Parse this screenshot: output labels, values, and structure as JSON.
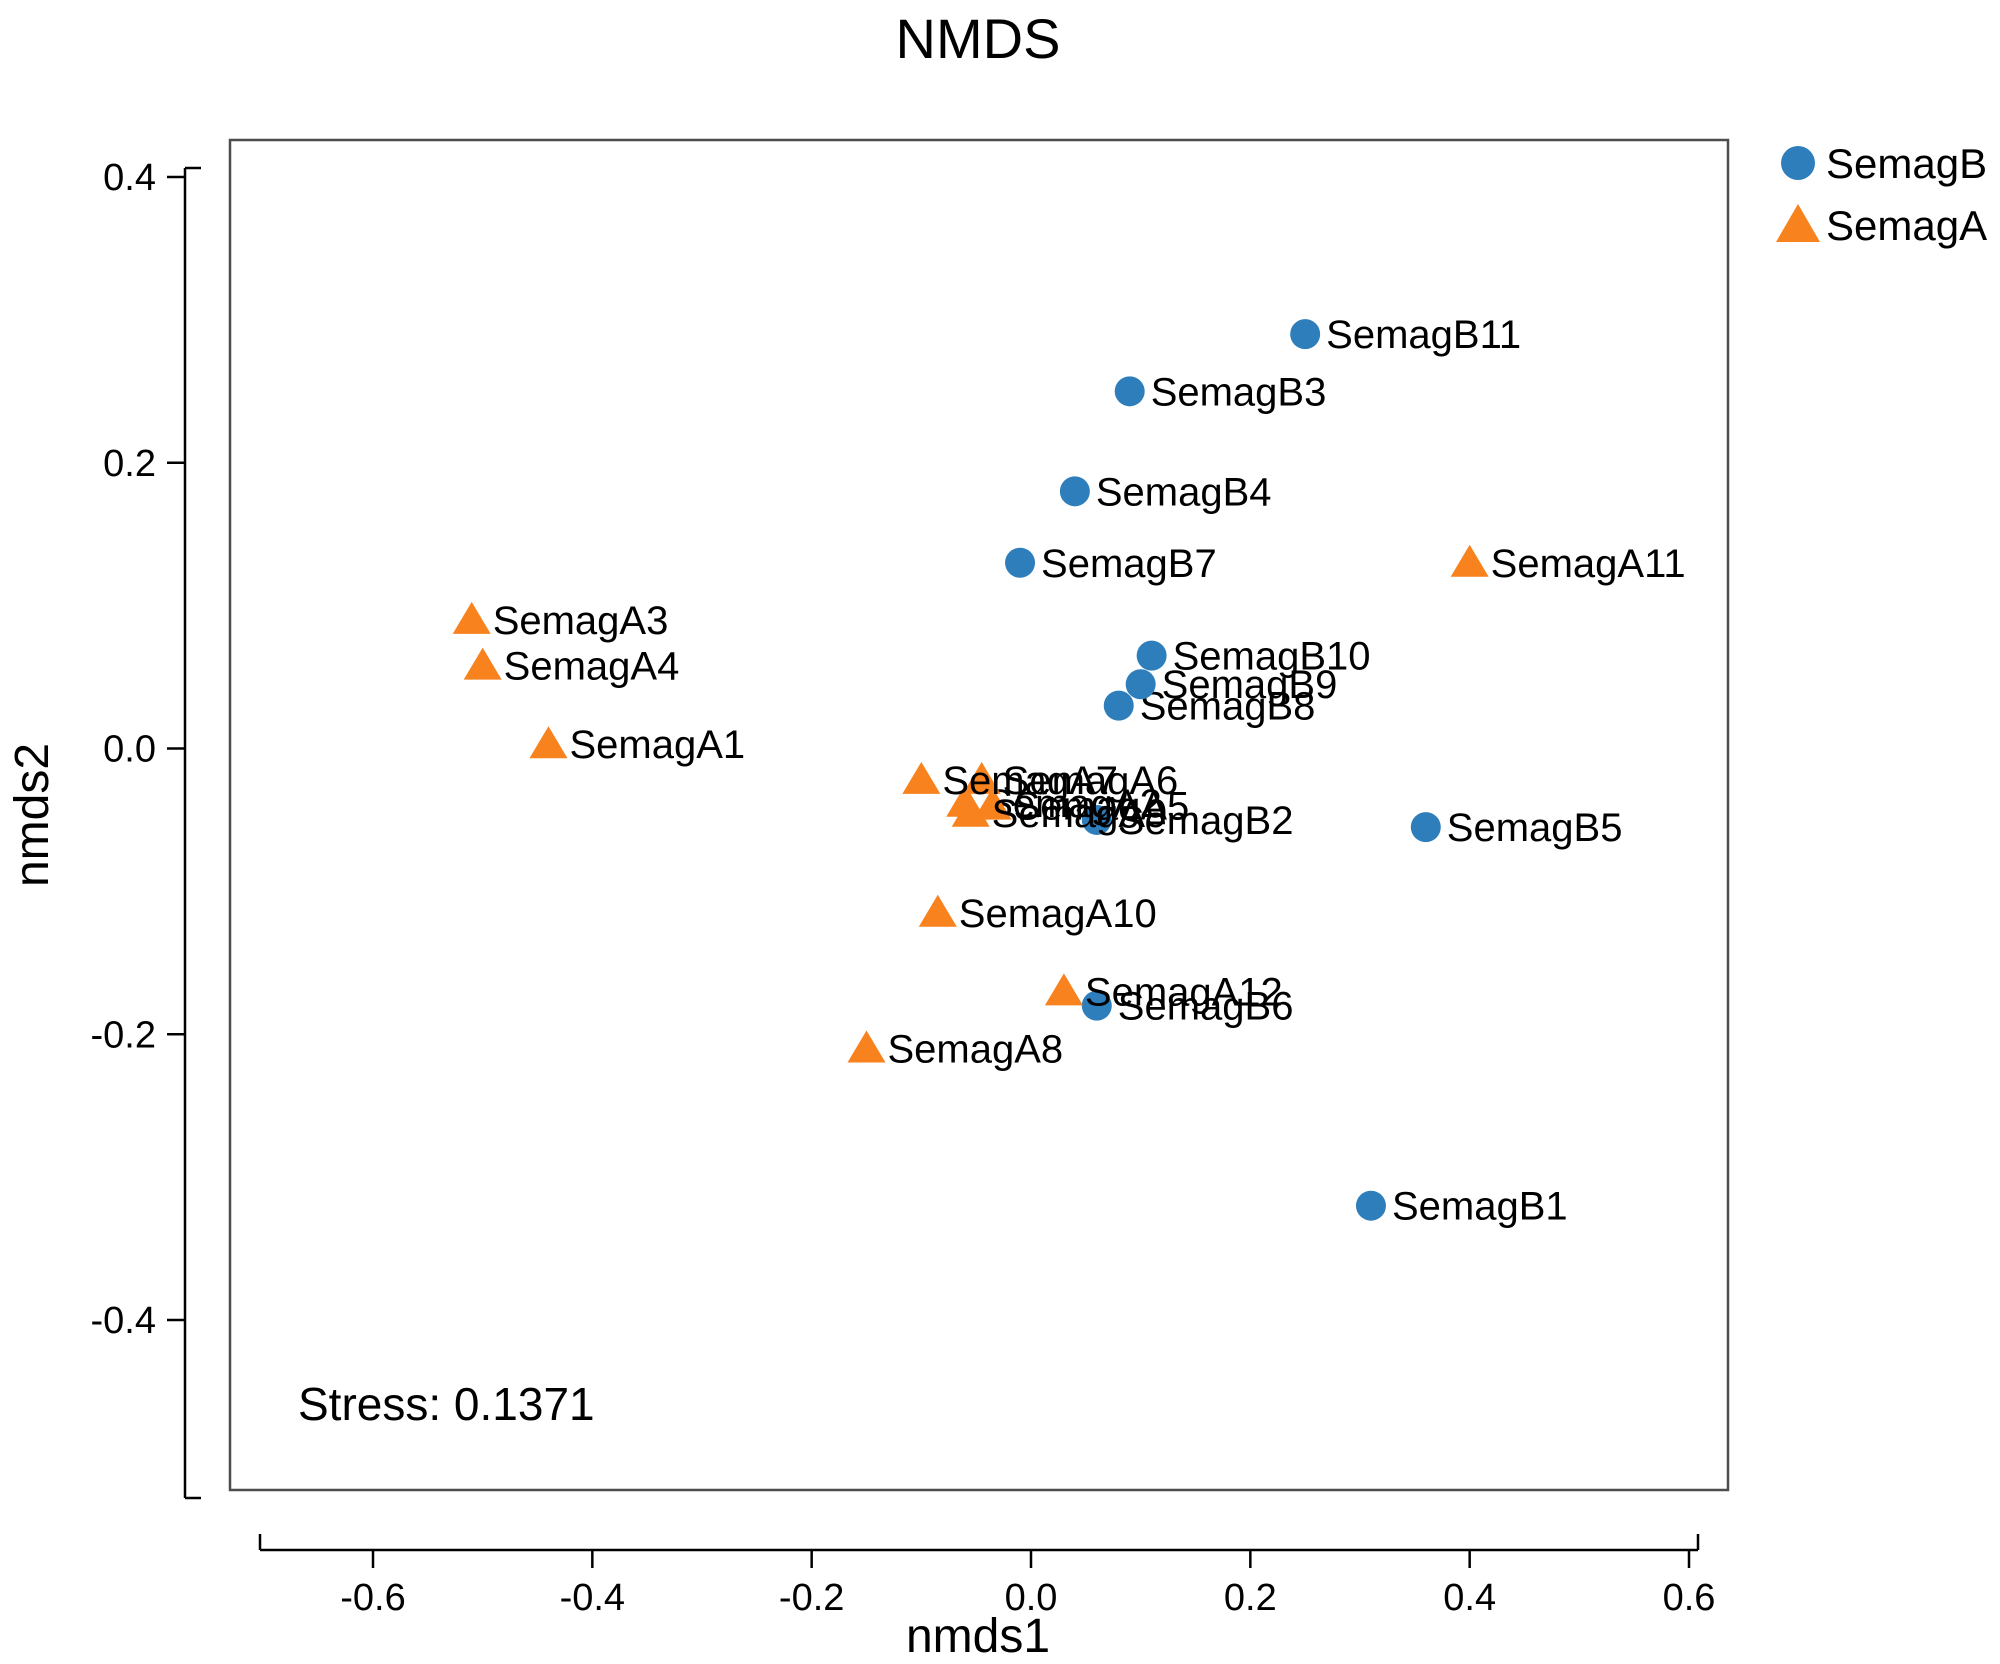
{
  "chart_data": {
    "type": "scatter",
    "title": "NMDS",
    "xlabel": "nmds1",
    "ylabel": "nmds2",
    "xlim": [
      -0.73,
      0.64
    ],
    "ylim": [
      -0.52,
      0.43
    ],
    "x_tick_values": [
      -0.6,
      -0.4,
      -0.2,
      0.0,
      0.2,
      0.4,
      0.6
    ],
    "x_tick_labels": [
      "-0.6",
      "-0.4",
      "-0.2",
      "0.0",
      "0.2",
      "0.4",
      "0.6"
    ],
    "y_tick_values": [
      0.4,
      0.2,
      0.0,
      -0.2,
      -0.4
    ],
    "y_tick_labels": [
      "0.4",
      "0.2",
      "0.0",
      "-0.2",
      "-0.4"
    ],
    "grid": false,
    "legend_position": "top-right-outside",
    "annotation": "Stress: 0.1371",
    "series": [
      {
        "name": "SemagB",
        "marker": "circle",
        "color": "#2e7ebc",
        "points": [
          {
            "label": "SemagB1",
            "x": 0.31,
            "y": -0.32
          },
          {
            "label": "SemagB2",
            "x": 0.06,
            "y": -0.05
          },
          {
            "label": "SemagB3",
            "x": 0.09,
            "y": 0.25
          },
          {
            "label": "SemagB4",
            "x": 0.04,
            "y": 0.18
          },
          {
            "label": "SemagB5",
            "x": 0.36,
            "y": -0.055
          },
          {
            "label": "SemagB6",
            "x": 0.06,
            "y": -0.18
          },
          {
            "label": "SemagB7",
            "x": -0.01,
            "y": 0.13
          },
          {
            "label": "SemagB8",
            "x": 0.08,
            "y": 0.03
          },
          {
            "label": "SemagB9",
            "x": 0.1,
            "y": 0.045
          },
          {
            "label": "SemagB10",
            "x": 0.11,
            "y": 0.065
          },
          {
            "label": "SemagB11",
            "x": 0.25,
            "y": 0.29
          }
        ]
      },
      {
        "name": "SemagA",
        "marker": "triangle",
        "color": "#f8821e",
        "points": [
          {
            "label": "SemagA1",
            "x": -0.44,
            "y": 0.003
          },
          {
            "label": "SemagA2",
            "x": -0.06,
            "y": -0.038
          },
          {
            "label": "SemagA3",
            "x": -0.51,
            "y": 0.09
          },
          {
            "label": "SemagA4",
            "x": -0.5,
            "y": 0.058
          },
          {
            "label": "SemagA5",
            "x": -0.035,
            "y": -0.04
          },
          {
            "label": "SemagA6",
            "x": -0.045,
            "y": -0.022
          },
          {
            "label": "SemagA7",
            "x": -0.1,
            "y": -0.022
          },
          {
            "label": "SemagA8",
            "x": -0.15,
            "y": -0.21
          },
          {
            "label": "SemagA9",
            "x": -0.055,
            "y": -0.045
          },
          {
            "label": "SemagA10",
            "x": -0.085,
            "y": -0.115
          },
          {
            "label": "SemagA11",
            "x": 0.4,
            "y": 0.13
          },
          {
            "label": "SemagA12",
            "x": 0.03,
            "y": -0.17
          }
        ]
      }
    ]
  }
}
